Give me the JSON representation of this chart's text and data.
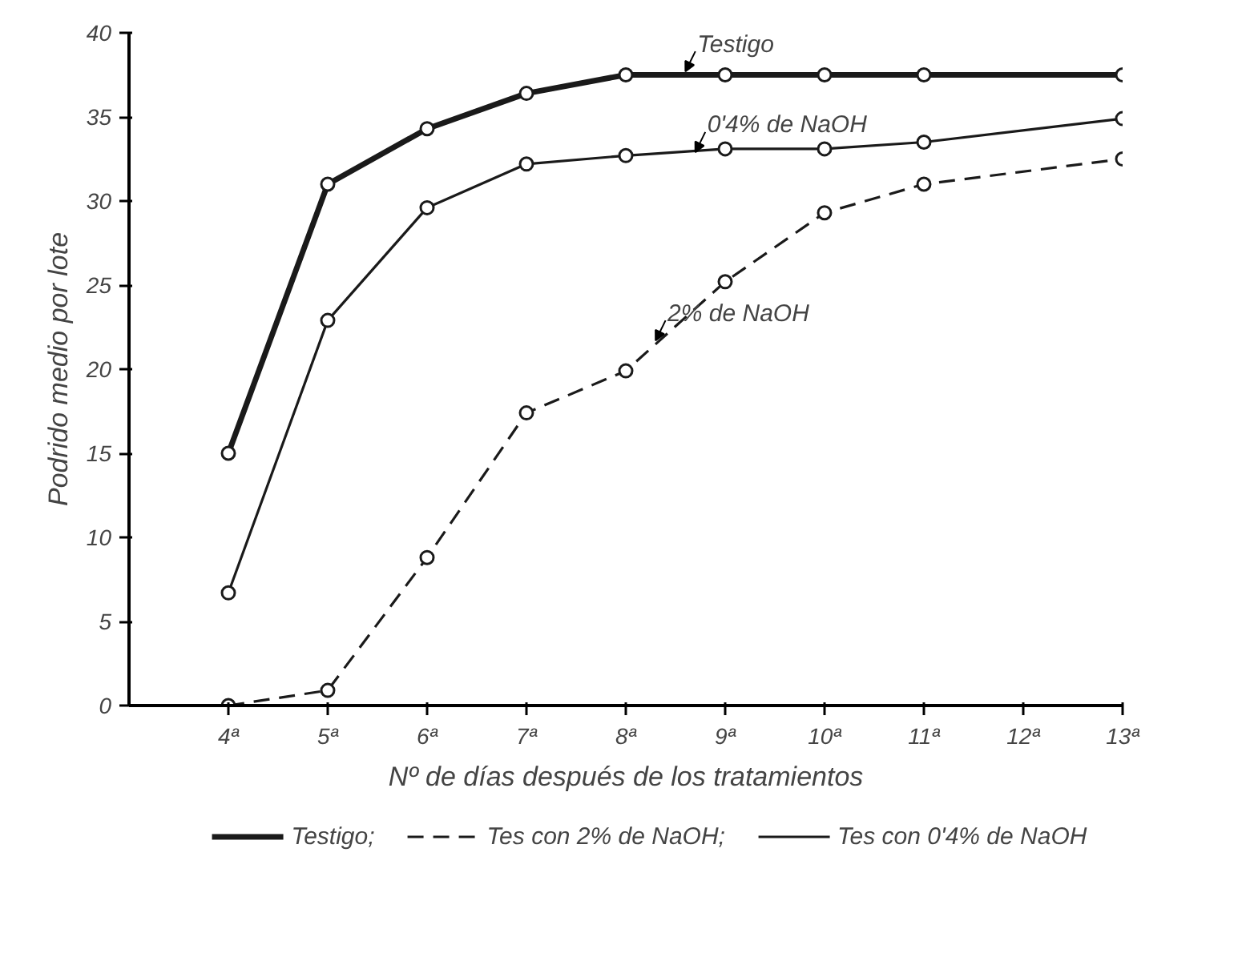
{
  "chart_data": {
    "type": "line",
    "xlabel": "Nº de días después de los tratamientos",
    "ylabel": "Podrido medio por lote",
    "x": [
      4,
      5,
      6,
      7,
      8,
      9,
      10,
      11,
      13
    ],
    "xlim": [
      3,
      13
    ],
    "xticks": [
      {
        "value": 4,
        "label": "4ª"
      },
      {
        "value": 5,
        "label": "5ª"
      },
      {
        "value": 6,
        "label": "6ª"
      },
      {
        "value": 7,
        "label": "7ª"
      },
      {
        "value": 8,
        "label": "8ª"
      },
      {
        "value": 9,
        "label": "9ª"
      },
      {
        "value": 10,
        "label": "10ª"
      },
      {
        "value": 11,
        "label": "11ª"
      },
      {
        "value": 12,
        "label": "12ª"
      },
      {
        "value": 13,
        "label": "13ª"
      }
    ],
    "ylim": [
      0,
      40
    ],
    "yticks": [
      0,
      5,
      10,
      15,
      20,
      25,
      30,
      35,
      40
    ],
    "marker": "circle",
    "legend": "bottom",
    "series": [
      {
        "name": "Testigo;",
        "color": "#1a1a1a",
        "line_style": "solid",
        "values": [
          15.0,
          31.0,
          34.3,
          36.4,
          37.5,
          37.5,
          37.5,
          37.5,
          37.5
        ]
      },
      {
        "name": "Tes con 2% de NaOH;",
        "color": "#1a1a1a",
        "line_style": "dashed",
        "values": [
          0.0,
          0.9,
          8.8,
          17.4,
          19.9,
          25.2,
          29.3,
          31.0,
          32.5
        ]
      },
      {
        "name": "Tes con 0'4% de NaOH",
        "color": "#1a1a1a",
        "line_style": "solid",
        "values": [
          6.7,
          22.9,
          29.6,
          32.2,
          32.7,
          33.1,
          33.1,
          33.5,
          34.9
        ]
      }
    ],
    "annotations": [
      {
        "text": "Testigo",
        "x": 8.6,
        "y": 37.5
      },
      {
        "text": "0'4% de NaOH",
        "x": 8.7,
        "y": 32.7
      },
      {
        "text": "2% de NaOH",
        "x": 8.3,
        "y": 21.5
      }
    ]
  }
}
